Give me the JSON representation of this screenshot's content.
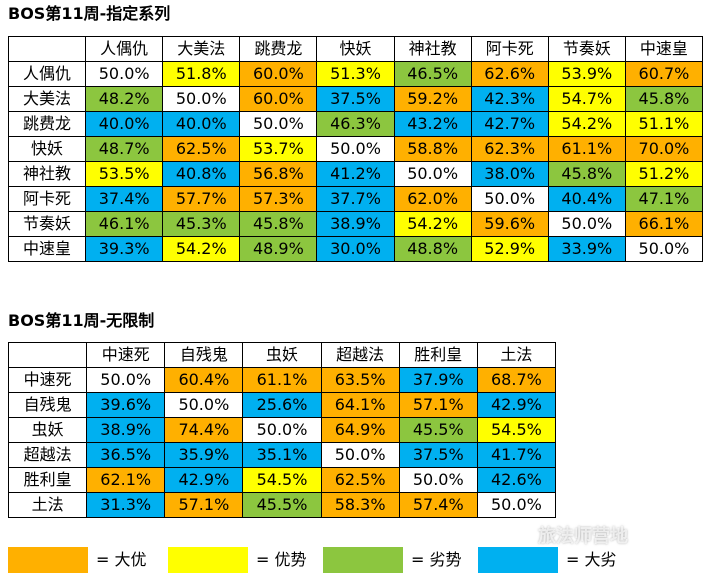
{
  "tables": [
    {
      "title": "BOS第11周-指定系列",
      "columns": [
        "人偶仇",
        "大美法",
        "跳费龙",
        "快妖",
        "神社教",
        "阿卡死",
        "节奏妖",
        "中速皇"
      ],
      "rows": [
        {
          "name": "人偶仇",
          "cells": [
            {
              "v": "50.0%",
              "c": "white"
            },
            {
              "v": "51.8%",
              "c": "yellow"
            },
            {
              "v": "60.0%",
              "c": "orange"
            },
            {
              "v": "51.3%",
              "c": "yellow"
            },
            {
              "v": "46.5%",
              "c": "green"
            },
            {
              "v": "62.6%",
              "c": "orange"
            },
            {
              "v": "53.9%",
              "c": "yellow"
            },
            {
              "v": "60.7%",
              "c": "orange"
            }
          ]
        },
        {
          "name": "大美法",
          "cells": [
            {
              "v": "48.2%",
              "c": "green"
            },
            {
              "v": "50.0%",
              "c": "white"
            },
            {
              "v": "60.0%",
              "c": "orange"
            },
            {
              "v": "37.5%",
              "c": "blue"
            },
            {
              "v": "59.2%",
              "c": "orange"
            },
            {
              "v": "42.3%",
              "c": "blue"
            },
            {
              "v": "54.7%",
              "c": "yellow"
            },
            {
              "v": "45.8%",
              "c": "green"
            }
          ]
        },
        {
          "name": "跳费龙",
          "cells": [
            {
              "v": "40.0%",
              "c": "blue"
            },
            {
              "v": "40.0%",
              "c": "blue"
            },
            {
              "v": "50.0%",
              "c": "white"
            },
            {
              "v": "46.3%",
              "c": "green"
            },
            {
              "v": "43.2%",
              "c": "blue"
            },
            {
              "v": "42.7%",
              "c": "blue"
            },
            {
              "v": "54.2%",
              "c": "yellow"
            },
            {
              "v": "51.1%",
              "c": "yellow"
            }
          ]
        },
        {
          "name": "快妖",
          "cells": [
            {
              "v": "48.7%",
              "c": "green"
            },
            {
              "v": "62.5%",
              "c": "orange"
            },
            {
              "v": "53.7%",
              "c": "yellow"
            },
            {
              "v": "50.0%",
              "c": "white"
            },
            {
              "v": "58.8%",
              "c": "orange"
            },
            {
              "v": "62.3%",
              "c": "orange"
            },
            {
              "v": "61.1%",
              "c": "orange"
            },
            {
              "v": "70.0%",
              "c": "orange"
            }
          ]
        },
        {
          "name": "神社教",
          "cells": [
            {
              "v": "53.5%",
              "c": "yellow"
            },
            {
              "v": "40.8%",
              "c": "blue"
            },
            {
              "v": "56.8%",
              "c": "orange"
            },
            {
              "v": "41.2%",
              "c": "blue"
            },
            {
              "v": "50.0%",
              "c": "white"
            },
            {
              "v": "38.0%",
              "c": "blue"
            },
            {
              "v": "45.8%",
              "c": "green"
            },
            {
              "v": "51.2%",
              "c": "yellow"
            }
          ]
        },
        {
          "name": "阿卡死",
          "cells": [
            {
              "v": "37.4%",
              "c": "blue"
            },
            {
              "v": "57.7%",
              "c": "orange"
            },
            {
              "v": "57.3%",
              "c": "orange"
            },
            {
              "v": "37.7%",
              "c": "blue"
            },
            {
              "v": "62.0%",
              "c": "orange"
            },
            {
              "v": "50.0%",
              "c": "white"
            },
            {
              "v": "40.4%",
              "c": "blue"
            },
            {
              "v": "47.1%",
              "c": "green"
            }
          ]
        },
        {
          "name": "节奏妖",
          "cells": [
            {
              "v": "46.1%",
              "c": "green"
            },
            {
              "v": "45.3%",
              "c": "green"
            },
            {
              "v": "45.8%",
              "c": "green"
            },
            {
              "v": "38.9%",
              "c": "blue"
            },
            {
              "v": "54.2%",
              "c": "yellow"
            },
            {
              "v": "59.6%",
              "c": "orange"
            },
            {
              "v": "50.0%",
              "c": "white"
            },
            {
              "v": "66.1%",
              "c": "orange"
            }
          ]
        },
        {
          "name": "中速皇",
          "cells": [
            {
              "v": "39.3%",
              "c": "blue"
            },
            {
              "v": "54.2%",
              "c": "yellow"
            },
            {
              "v": "48.9%",
              "c": "green"
            },
            {
              "v": "30.0%",
              "c": "blue"
            },
            {
              "v": "48.8%",
              "c": "green"
            },
            {
              "v": "52.9%",
              "c": "yellow"
            },
            {
              "v": "33.9%",
              "c": "blue"
            },
            {
              "v": "50.0%",
              "c": "white"
            }
          ]
        }
      ]
    },
    {
      "title": "BOS第11周-无限制",
      "columns": [
        "中速死",
        "自残鬼",
        "虫妖",
        "超越法",
        "胜利皇",
        "土法"
      ],
      "rows": [
        {
          "name": "中速死",
          "cells": [
            {
              "v": "50.0%",
              "c": "white"
            },
            {
              "v": "60.4%",
              "c": "orange"
            },
            {
              "v": "61.1%",
              "c": "orange"
            },
            {
              "v": "63.5%",
              "c": "orange"
            },
            {
              "v": "37.9%",
              "c": "blue"
            },
            {
              "v": "68.7%",
              "c": "orange"
            }
          ]
        },
        {
          "name": "自残鬼",
          "cells": [
            {
              "v": "39.6%",
              "c": "blue"
            },
            {
              "v": "50.0%",
              "c": "white"
            },
            {
              "v": "25.6%",
              "c": "blue"
            },
            {
              "v": "64.1%",
              "c": "orange"
            },
            {
              "v": "57.1%",
              "c": "orange"
            },
            {
              "v": "42.9%",
              "c": "blue"
            }
          ]
        },
        {
          "name": "虫妖",
          "cells": [
            {
              "v": "38.9%",
              "c": "blue"
            },
            {
              "v": "74.4%",
              "c": "orange"
            },
            {
              "v": "50.0%",
              "c": "white"
            },
            {
              "v": "64.9%",
              "c": "orange"
            },
            {
              "v": "45.5%",
              "c": "green"
            },
            {
              "v": "54.5%",
              "c": "yellow"
            }
          ]
        },
        {
          "name": "超越法",
          "cells": [
            {
              "v": "36.5%",
              "c": "blue"
            },
            {
              "v": "35.9%",
              "c": "blue"
            },
            {
              "v": "35.1%",
              "c": "blue"
            },
            {
              "v": "50.0%",
              "c": "white"
            },
            {
              "v": "37.5%",
              "c": "blue"
            },
            {
              "v": "41.7%",
              "c": "blue"
            }
          ]
        },
        {
          "name": "胜利皇",
          "cells": [
            {
              "v": "62.1%",
              "c": "orange"
            },
            {
              "v": "42.9%",
              "c": "blue"
            },
            {
              "v": "54.5%",
              "c": "yellow"
            },
            {
              "v": "62.5%",
              "c": "orange"
            },
            {
              "v": "50.0%",
              "c": "white"
            },
            {
              "v": "42.6%",
              "c": "blue"
            }
          ]
        },
        {
          "name": "土法",
          "cells": [
            {
              "v": "31.3%",
              "c": "blue"
            },
            {
              "v": "57.1%",
              "c": "orange"
            },
            {
              "v": "45.5%",
              "c": "green"
            },
            {
              "v": "58.3%",
              "c": "orange"
            },
            {
              "v": "57.4%",
              "c": "orange"
            },
            {
              "v": "50.0%",
              "c": "white"
            }
          ]
        }
      ]
    }
  ],
  "legend": [
    {
      "label": "= 大优",
      "color": "orange"
    },
    {
      "label": "= 优势",
      "color": "yellow"
    },
    {
      "label": "= 劣势",
      "color": "green"
    },
    {
      "label": "= 大劣",
      "color": "blue"
    }
  ],
  "colors": {
    "orange": "#ffb000",
    "yellow": "#ffff00",
    "green": "#8cc63f",
    "blue": "#00b0f0",
    "white": "#ffffff"
  },
  "watermark": "旅法师营地"
}
